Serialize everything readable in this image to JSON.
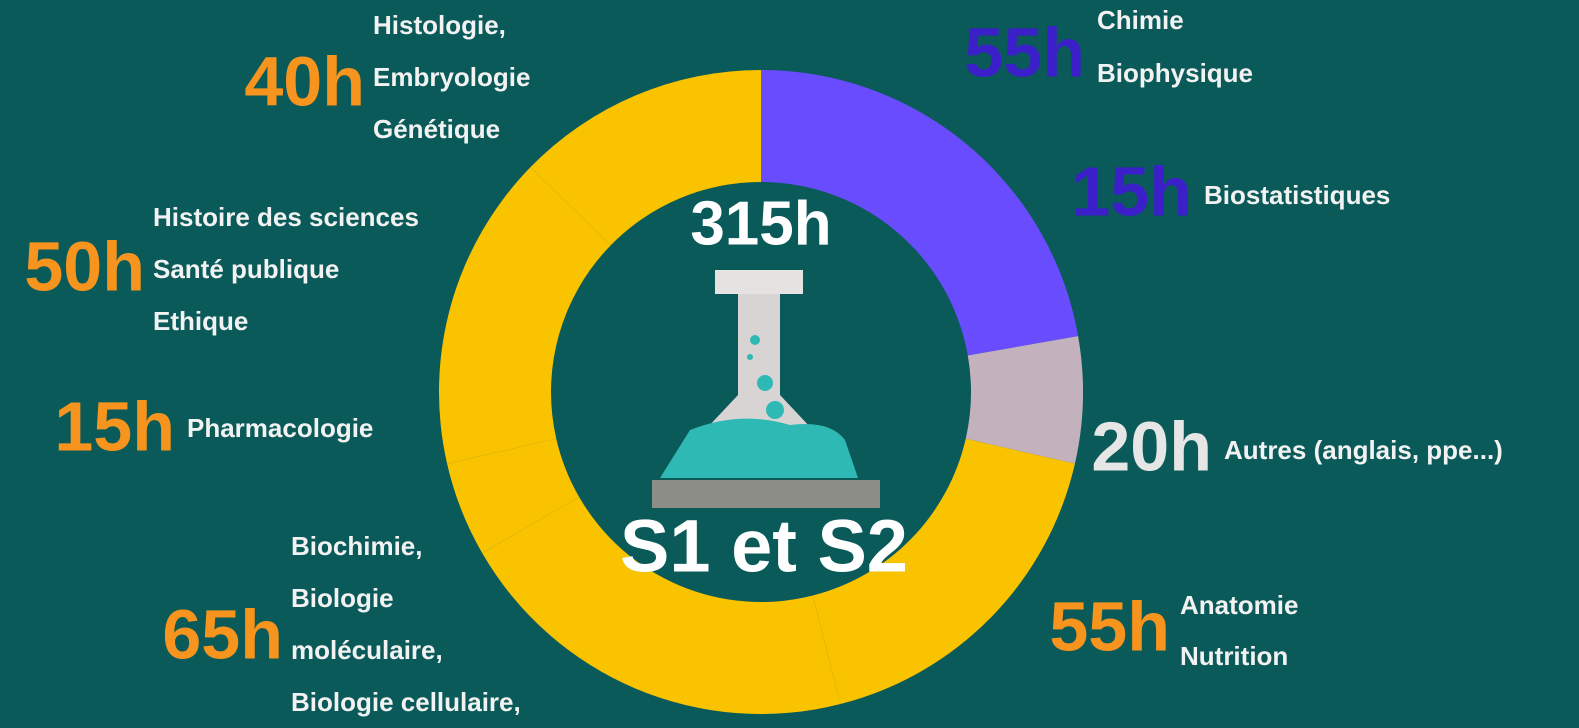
{
  "chart_data": {
    "type": "donut",
    "center_label": "315h",
    "center_sublabel": "S1 et S2",
    "categories": [
      [
        "Chimie",
        "Biophysique"
      ],
      [
        "Biostatistiques"
      ],
      [
        "Autres (anglais, ppe...)"
      ],
      [
        "Anatomie",
        "Nutrition"
      ],
      [
        "Biochimie,",
        "Biologie",
        "moléculaire,",
        "Biologie cellulaire,"
      ],
      [
        "Pharmacologie"
      ],
      [
        "Histoire des sciences",
        "Santé publique",
        "Ethique"
      ],
      [
        "Histologie,",
        "Embryologie",
        "Génétique"
      ]
    ],
    "values": [
      55,
      15,
      20,
      55,
      65,
      15,
      50,
      40
    ],
    "value_labels": [
      "55h",
      "15h",
      "20h",
      "55h",
      "65h",
      "15h",
      "50h",
      "40h"
    ],
    "colors": [
      "#6a4cff",
      "#6a4cff",
      "#c3b2bd",
      "#f9c300",
      "#f9c300",
      "#f9c300",
      "#f9c300",
      "#f9c300"
    ],
    "label_colors": [
      "#3b1fc8",
      "#3b1fc8",
      "#e6e6e6",
      "#f7941d",
      "#f7941d",
      "#f7941d",
      "#f7941d",
      "#f7941d"
    ]
  }
}
